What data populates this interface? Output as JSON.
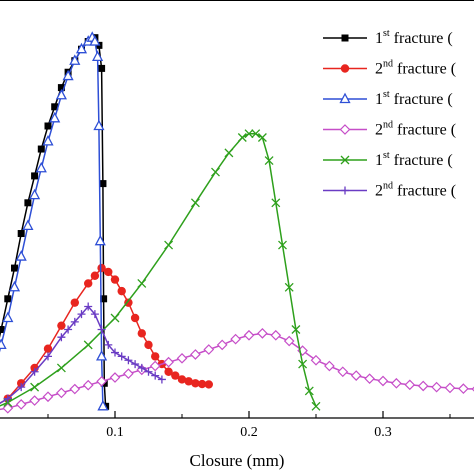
{
  "chart_data": {
    "type": "line",
    "title": "",
    "xlabel": "Closure (mm)",
    "ylabel": "",
    "xlim": [
      0.0,
      0.38
    ],
    "ylim": [
      0,
      100
    ],
    "x_ticks": [
      {
        "value": 0.1,
        "label": "0.1"
      },
      {
        "value": 0.2,
        "label": "0.2"
      },
      {
        "value": 0.3,
        "label": "0.3"
      }
    ],
    "legend_position": "top-right",
    "series": [
      {
        "name_ord": "1",
        "name_sup": "st",
        "name_rest": " fracture (",
        "color": "#000000",
        "marker": "square-filled",
        "x": [
          0.0,
          0.005,
          0.01,
          0.015,
          0.02,
          0.025,
          0.03,
          0.035,
          0.04,
          0.045,
          0.05,
          0.055,
          0.06,
          0.065,
          0.07,
          0.075,
          0.08,
          0.085,
          0.088,
          0.09,
          0.091,
          0.0915,
          0.092,
          0.093
        ],
        "y": [
          3,
          8,
          14,
          22,
          30,
          38,
          47,
          55,
          62,
          69,
          75,
          80,
          85,
          89,
          92,
          95,
          97,
          98,
          96,
          90,
          60,
          30,
          8,
          2
        ]
      },
      {
        "name_ord": "2",
        "name_sup": "nd",
        "name_rest": " fracture (",
        "color": "#e8251f",
        "marker": "circle-filled",
        "x": [
          0.0,
          0.01,
          0.02,
          0.03,
          0.04,
          0.05,
          0.06,
          0.07,
          0.08,
          0.085,
          0.09,
          0.095,
          0.1,
          0.105,
          0.11,
          0.115,
          0.12,
          0.125,
          0.13,
          0.135,
          0.14,
          0.145,
          0.15,
          0.155,
          0.16,
          0.165,
          0.17
        ],
        "y": [
          1,
          2,
          4,
          8,
          12,
          17,
          23,
          29,
          34,
          36,
          38,
          37,
          35,
          32,
          29,
          25,
          21,
          18,
          15,
          13,
          11,
          10,
          9,
          8.5,
          8,
          7.8,
          7.7
        ]
      },
      {
        "name_ord": "1",
        "name_sup": "st",
        "name_rest": " fracture (",
        "color": "#2e4fd6",
        "marker": "triangle-open",
        "x": [
          0.0,
          0.005,
          0.01,
          0.015,
          0.02,
          0.025,
          0.03,
          0.035,
          0.04,
          0.045,
          0.05,
          0.055,
          0.06,
          0.065,
          0.07,
          0.075,
          0.08,
          0.083,
          0.085,
          0.087,
          0.088,
          0.089,
          0.09,
          0.091
        ],
        "y": [
          2,
          6,
          11,
          18,
          25,
          33,
          41,
          49,
          57,
          64,
          71,
          77,
          83,
          88,
          92,
          95,
          97,
          98,
          97,
          93,
          75,
          45,
          15,
          2
        ]
      },
      {
        "name_ord": "2",
        "name_sup": "nd",
        "name_rest": " fracture (",
        "color": "#c64ec8",
        "marker": "diamond-open",
        "x": [
          0.0,
          0.01,
          0.02,
          0.03,
          0.04,
          0.05,
          0.06,
          0.07,
          0.08,
          0.09,
          0.1,
          0.11,
          0.12,
          0.13,
          0.14,
          0.15,
          0.16,
          0.17,
          0.18,
          0.19,
          0.2,
          0.21,
          0.22,
          0.23,
          0.24,
          0.25,
          0.26,
          0.27,
          0.28,
          0.29,
          0.3,
          0.31,
          0.32,
          0.33,
          0.34,
          0.35,
          0.36,
          0.37,
          0.38
        ],
        "y": [
          0.5,
          1,
          1.5,
          2.5,
          3.5,
          4.5,
          5.5,
          6.5,
          7.5,
          8.5,
          9.5,
          10.5,
          11.5,
          12.5,
          13.5,
          14.5,
          15.5,
          16.8,
          18,
          19.5,
          20.5,
          21,
          20.5,
          19,
          16.5,
          14,
          12.5,
          11,
          10,
          9.2,
          8.6,
          8,
          7.6,
          7.3,
          7,
          6.8,
          6.6,
          6.5,
          6.4
        ]
      },
      {
        "name_ord": "1",
        "name_sup": "st",
        "name_rest": " fracture (",
        "color": "#2ea01c",
        "marker": "x",
        "x": [
          0.0,
          0.02,
          0.04,
          0.06,
          0.08,
          0.1,
          0.12,
          0.14,
          0.16,
          0.175,
          0.185,
          0.195,
          0.2,
          0.205,
          0.21,
          0.215,
          0.22,
          0.225,
          0.23,
          0.235,
          0.24,
          0.245,
          0.25
        ],
        "y": [
          0,
          3,
          7,
          12,
          18,
          25,
          34,
          44,
          55,
          63,
          68,
          72,
          73,
          73,
          72,
          66,
          55,
          44,
          33,
          22,
          13,
          6,
          2
        ]
      },
      {
        "name_ord": "2",
        "name_sup": "nd",
        "name_rest": " fracture (",
        "color": "#6a3cc4",
        "marker": "plus",
        "x": [
          0.0,
          0.01,
          0.02,
          0.03,
          0.04,
          0.05,
          0.06,
          0.065,
          0.07,
          0.075,
          0.08,
          0.085,
          0.09,
          0.095,
          0.1,
          0.105,
          0.11,
          0.115,
          0.12,
          0.125,
          0.13,
          0.135
        ],
        "y": [
          1,
          2,
          4,
          7,
          11,
          15,
          20,
          22,
          24,
          26,
          28,
          26,
          22,
          18,
          16,
          15,
          14,
          13,
          12,
          11,
          10,
          9
        ]
      }
    ]
  }
}
